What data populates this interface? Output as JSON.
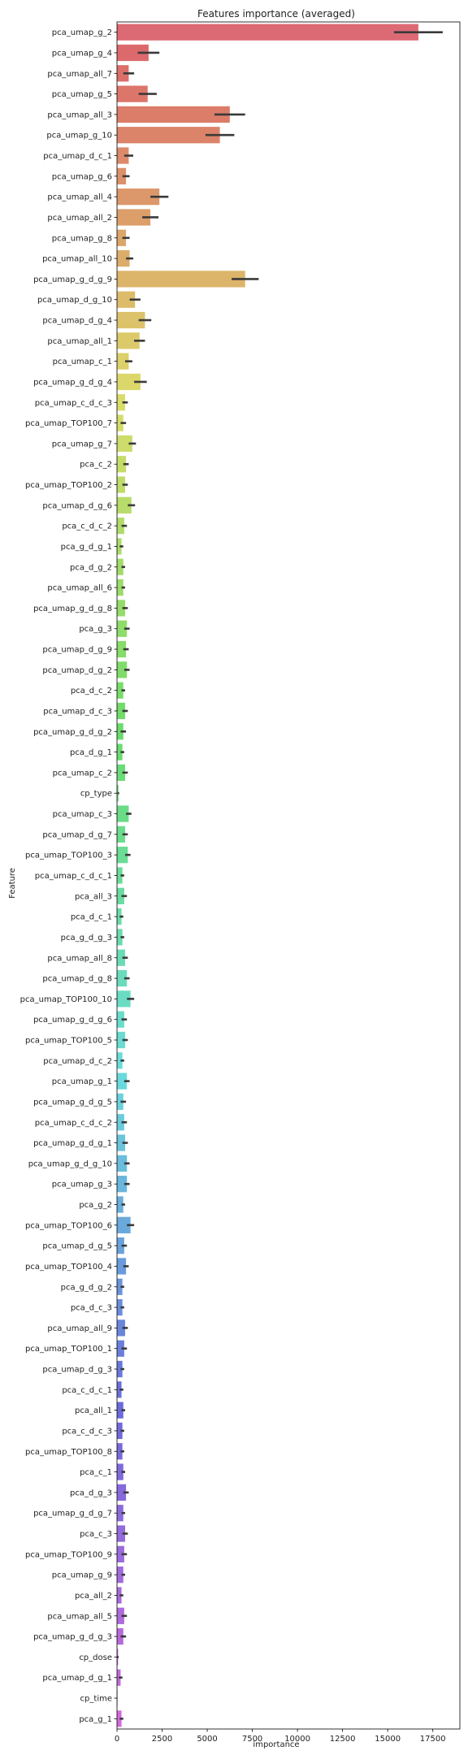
{
  "chart_data": {
    "type": "bar",
    "orientation": "horizontal",
    "title": "Features importance (averaged)",
    "xlabel": "importance",
    "ylabel": "Feature",
    "xlim": [
      0,
      19000
    ],
    "x_ticks": [
      0,
      2500,
      5000,
      7500,
      10000,
      12500,
      15000,
      17500
    ],
    "x_tick_labels": [
      "0",
      "2500",
      "5000",
      "7500",
      "10000",
      "12500",
      "15000",
      "17500"
    ],
    "grid": false,
    "legend": "none",
    "error_bars": true,
    "palette": "husl",
    "categories": [
      "pca_umap_g_2",
      "pca_umap_g_4",
      "pca_umap_all_7",
      "pca_umap_g_5",
      "pca_umap_all_3",
      "pca_umap_g_10",
      "pca_umap_d_c_1",
      "pca_umap_g_6",
      "pca_umap_all_4",
      "pca_umap_all_2",
      "pca_umap_g_8",
      "pca_umap_all_10",
      "pca_umap_g_d_g_9",
      "pca_umap_d_g_10",
      "pca_umap_d_g_4",
      "pca_umap_all_1",
      "pca_umap_c_1",
      "pca_umap_g_d_g_4",
      "pca_umap_c_d_c_3",
      "pca_umap_TOP100_7",
      "pca_umap_g_7",
      "pca_c_2",
      "pca_umap_TOP100_2",
      "pca_umap_d_g_6",
      "pca_c_d_c_2",
      "pca_g_d_g_1",
      "pca_d_g_2",
      "pca_umap_all_6",
      "pca_umap_g_d_g_8",
      "pca_g_3",
      "pca_umap_d_g_9",
      "pca_umap_d_g_2",
      "pca_d_c_2",
      "pca_umap_d_c_3",
      "pca_umap_g_d_g_2",
      "pca_d_g_1",
      "pca_umap_c_2",
      "cp_type",
      "pca_umap_c_3",
      "pca_umap_d_g_7",
      "pca_umap_TOP100_3",
      "pca_umap_c_d_c_1",
      "pca_all_3",
      "pca_d_c_1",
      "pca_g_d_g_3",
      "pca_umap_all_8",
      "pca_umap_d_g_8",
      "pca_umap_TOP100_10",
      "pca_umap_g_d_g_6",
      "pca_umap_TOP100_5",
      "pca_umap_d_c_2",
      "pca_umap_g_1",
      "pca_umap_g_d_g_5",
      "pca_umap_c_d_c_2",
      "pca_umap_g_d_g_1",
      "pca_umap_g_d_g_10",
      "pca_umap_g_3",
      "pca_g_2",
      "pca_umap_TOP100_6",
      "pca_umap_d_g_5",
      "pca_umap_TOP100_4",
      "pca_g_d_g_2",
      "pca_d_c_3",
      "pca_umap_all_9",
      "pca_umap_TOP100_1",
      "pca_umap_d_g_3",
      "pca_c_d_c_1",
      "pca_all_1",
      "pca_c_d_c_3",
      "pca_umap_TOP100_8",
      "pca_c_1",
      "pca_d_g_3",
      "pca_umap_g_d_g_7",
      "pca_c_3",
      "pca_umap_TOP100_9",
      "pca_umap_g_9",
      "pca_all_2",
      "pca_umap_all_5",
      "pca_umap_g_d_g_3",
      "cp_dose",
      "pca_umap_d_g_1",
      "cp_time",
      "pca_g_1"
    ],
    "values": [
      16700,
      1750,
      650,
      1700,
      6250,
      5700,
      650,
      500,
      2350,
      1850,
      500,
      700,
      7100,
      1000,
      1550,
      1250,
      650,
      1300,
      450,
      350,
      850,
      500,
      450,
      800,
      400,
      250,
      350,
      350,
      450,
      550,
      500,
      550,
      350,
      450,
      350,
      300,
      450,
      80,
      650,
      450,
      600,
      300,
      400,
      250,
      300,
      450,
      550,
      750,
      400,
      450,
      300,
      550,
      350,
      400,
      450,
      550,
      550,
      350,
      750,
      400,
      500,
      300,
      300,
      450,
      400,
      300,
      250,
      350,
      300,
      300,
      350,
      500,
      350,
      450,
      400,
      350,
      250,
      400,
      350,
      60,
      200,
      15,
      250
    ],
    "errors": [
      1350,
      600,
      300,
      500,
      850,
      800,
      250,
      200,
      500,
      450,
      200,
      200,
      750,
      300,
      350,
      300,
      200,
      350,
      150,
      150,
      200,
      150,
      150,
      200,
      150,
      100,
      100,
      100,
      150,
      150,
      150,
      150,
      100,
      150,
      150,
      100,
      150,
      40,
      150,
      150,
      150,
      100,
      150,
      100,
      100,
      150,
      150,
      200,
      150,
      150,
      100,
      150,
      150,
      150,
      150,
      150,
      150,
      100,
      200,
      150,
      150,
      100,
      100,
      150,
      150,
      100,
      100,
      100,
      100,
      100,
      100,
      150,
      100,
      150,
      150,
      100,
      100,
      150,
      150,
      30,
      100,
      10,
      100
    ]
  }
}
